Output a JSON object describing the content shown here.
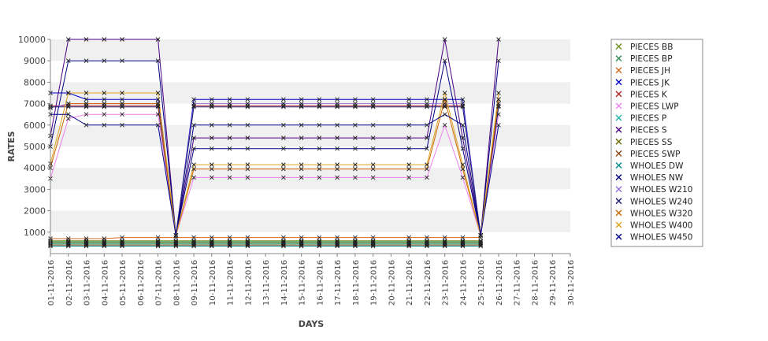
{
  "chart_data": {
    "type": "line",
    "title": "",
    "xlabel": "DAYS",
    "ylabel": "RATES",
    "ylim": [
      0,
      10000
    ],
    "yticks": [
      1000,
      2000,
      3000,
      4000,
      5000,
      6000,
      7000,
      8000,
      9000,
      10000
    ],
    "grid": "horizontal alternating bands",
    "legend_position": "right",
    "categories": [
      "01-11-2016",
      "02-11-2016",
      "03-11-2016",
      "04-11-2016",
      "05-11-2016",
      "06-11-2016",
      "07-11-2016",
      "08-11-2016",
      "09-11-2016",
      "10-11-2016",
      "11-11-2016",
      "12-11-2016",
      "13-11-2016",
      "14-11-2016",
      "15-11-2016",
      "16-11-2016",
      "17-11-2016",
      "18-11-2016",
      "19-11-2016",
      "20-11-2016",
      "21-11-2016",
      "22-11-2016",
      "23-11-2016",
      "24-11-2016",
      "25-11-2016",
      "26-11-2016",
      "27-11-2016",
      "28-11-2016",
      "29-11-2016",
      "30-11-2016"
    ],
    "series": [
      {
        "name": "PIECES BB",
        "color": "#6b8e23",
        "values": [
          600,
          600,
          600,
          600,
          600,
          null,
          600,
          600,
          600,
          600,
          600,
          600,
          null,
          600,
          600,
          600,
          600,
          600,
          600,
          null,
          600,
          600,
          600,
          600,
          600,
          null,
          null,
          null,
          null,
          null
        ]
      },
      {
        "name": "PIECES BP",
        "color": "#2e8b57",
        "values": [
          550,
          550,
          550,
          550,
          550,
          null,
          550,
          550,
          550,
          550,
          550,
          550,
          null,
          550,
          550,
          550,
          550,
          550,
          550,
          null,
          550,
          550,
          550,
          550,
          550,
          null,
          null,
          null,
          null,
          null
        ]
      },
      {
        "name": "PIECES JH",
        "color": "#d2691e",
        "values": [
          700,
          700,
          700,
          700,
          750,
          null,
          750,
          750,
          750,
          750,
          750,
          750,
          null,
          750,
          750,
          750,
          750,
          750,
          750,
          null,
          750,
          750,
          750,
          750,
          750,
          null,
          null,
          null,
          null,
          null
        ]
      },
      {
        "name": "PIECES JK",
        "color": "#0000cd",
        "values": [
          7500,
          7500,
          7200,
          7200,
          7200,
          null,
          7200,
          850,
          7200,
          7200,
          7200,
          7200,
          null,
          7200,
          7200,
          7200,
          7200,
          7200,
          7200,
          null,
          7200,
          7200,
          7200,
          7200,
          850,
          7200,
          null,
          null,
          null,
          null
        ]
      },
      {
        "name": "PIECES K",
        "color": "#b22222",
        "values": [
          6900,
          6900,
          6900,
          6900,
          6900,
          null,
          6900,
          850,
          6900,
          6900,
          6900,
          6900,
          null,
          6900,
          6900,
          6900,
          6900,
          6900,
          6900,
          null,
          6900,
          6900,
          6900,
          6900,
          850,
          6900,
          null,
          null,
          null,
          null
        ]
      },
      {
        "name": "PIECES LWP",
        "color": "#ee82ee",
        "values": [
          3500,
          6300,
          6500,
          6500,
          6500,
          null,
          6500,
          850,
          3550,
          3550,
          3550,
          3550,
          null,
          3550,
          3550,
          3550,
          3550,
          3550,
          3550,
          null,
          3550,
          3550,
          6000,
          3550,
          850,
          6500,
          null,
          null,
          null,
          null
        ]
      },
      {
        "name": "PIECES P",
        "color": "#20b2aa",
        "values": [
          450,
          450,
          450,
          450,
          450,
          null,
          450,
          450,
          450,
          450,
          450,
          450,
          null,
          450,
          450,
          450,
          450,
          450,
          450,
          null,
          450,
          450,
          450,
          450,
          450,
          null,
          null,
          null,
          null,
          null
        ]
      },
      {
        "name": "PIECES S",
        "color": "#4b0082",
        "values": [
          5500,
          10000,
          10000,
          10000,
          10000,
          null,
          10000,
          850,
          5400,
          5400,
          5400,
          5400,
          null,
          5400,
          5400,
          5400,
          5400,
          5400,
          5400,
          null,
          5400,
          5400,
          10000,
          5400,
          850,
          10000,
          null,
          null,
          null,
          null
        ]
      },
      {
        "name": "PIECES SS",
        "color": "#6b6b00",
        "values": [
          500,
          500,
          500,
          500,
          500,
          null,
          500,
          500,
          500,
          500,
          500,
          500,
          null,
          500,
          500,
          500,
          500,
          500,
          500,
          null,
          500,
          500,
          500,
          500,
          500,
          null,
          null,
          null,
          null,
          null
        ]
      },
      {
        "name": "PIECES SWP",
        "color": "#8b4513",
        "values": [
          400,
          400,
          400,
          400,
          400,
          null,
          400,
          400,
          400,
          400,
          400,
          400,
          null,
          400,
          400,
          400,
          400,
          400,
          400,
          null,
          400,
          400,
          400,
          400,
          400,
          null,
          null,
          null,
          null,
          null
        ]
      },
      {
        "name": "WHOLES DW",
        "color": "#008b8b",
        "values": [
          350,
          350,
          350,
          350,
          350,
          null,
          350,
          350,
          350,
          350,
          350,
          350,
          null,
          350,
          350,
          350,
          350,
          350,
          350,
          null,
          350,
          350,
          350,
          350,
          350,
          null,
          null,
          null,
          null,
          null
        ]
      },
      {
        "name": "WHOLES NW",
        "color": "#000080",
        "values": [
          5000,
          9000,
          9000,
          9000,
          9000,
          null,
          9000,
          850,
          4900,
          4900,
          4900,
          4900,
          null,
          4900,
          4900,
          4900,
          4900,
          4900,
          4900,
          null,
          4900,
          4900,
          9000,
          4900,
          850,
          9000,
          null,
          null,
          null,
          null
        ]
      },
      {
        "name": "WHOLES W210",
        "color": "#9370db",
        "values": [
          6800,
          7000,
          7000,
          7000,
          7000,
          null,
          7000,
          850,
          7000,
          7000,
          7000,
          7000,
          null,
          7000,
          7000,
          7000,
          7000,
          7000,
          7000,
          null,
          7000,
          7000,
          7000,
          7000,
          850,
          7000,
          null,
          null,
          null,
          null
        ]
      },
      {
        "name": "WHOLES W240",
        "color": "#191970",
        "values": [
          6850,
          6850,
          6850,
          6850,
          6850,
          null,
          6850,
          850,
          6850,
          6850,
          6850,
          6850,
          null,
          6850,
          6850,
          6850,
          6850,
          6850,
          6850,
          null,
          6850,
          6850,
          6850,
          6850,
          850,
          6850,
          null,
          null,
          null,
          null
        ]
      },
      {
        "name": "WHOLES W320",
        "color": "#cd6600",
        "values": [
          4000,
          7000,
          7000,
          7000,
          7000,
          null,
          7000,
          850,
          3950,
          3950,
          3950,
          3950,
          null,
          3950,
          3950,
          3950,
          3950,
          3950,
          3950,
          null,
          3950,
          3950,
          7200,
          3950,
          850,
          7200,
          null,
          null,
          null,
          null
        ]
      },
      {
        "name": "WHOLES W400",
        "color": "#daa520",
        "values": [
          4200,
          7500,
          7500,
          7500,
          7500,
          null,
          7500,
          850,
          4150,
          4150,
          4150,
          4150,
          null,
          4150,
          4150,
          4150,
          4150,
          4150,
          4150,
          null,
          4150,
          4150,
          7500,
          4150,
          850,
          7500,
          null,
          null,
          null,
          null
        ]
      },
      {
        "name": "WHOLES W450",
        "color": "#00008b",
        "values": [
          6500,
          6500,
          6000,
          6000,
          6000,
          null,
          6000,
          850,
          6000,
          6000,
          6000,
          6000,
          null,
          6000,
          6000,
          6000,
          6000,
          6000,
          6000,
          null,
          6000,
          6000,
          6500,
          6000,
          850,
          6000,
          null,
          null,
          null,
          null
        ]
      }
    ]
  }
}
